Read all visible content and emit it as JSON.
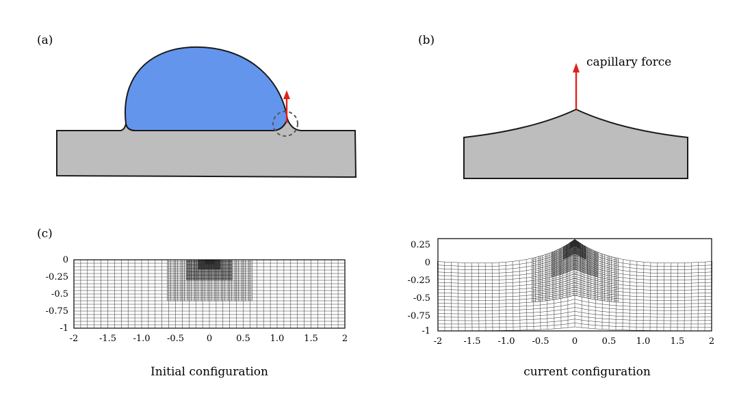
{
  "panels": {
    "a": {
      "label": "(a)"
    },
    "b": {
      "label": "(b)",
      "force_label": "capillary force"
    },
    "c": {
      "label": "(c)"
    }
  },
  "colors": {
    "droplet": "#6495ED",
    "substrate": "#BDBDBD",
    "outline": "#1a1a1a",
    "force_arrow": "#E0211B",
    "detail_circle": "#555555",
    "mesh_line": "#2b2b2b"
  },
  "meshes": {
    "initial": {
      "caption": "Initial configuration",
      "x_ticks": [
        "-2",
        "-1.5",
        "-1.0",
        "-0.5",
        "0",
        "0.5",
        "1.0",
        "1.5",
        "2"
      ],
      "y_ticks": [
        "0",
        "-0.25",
        "-0.5",
        "-0.75",
        "-1"
      ]
    },
    "current": {
      "caption": "current configuration",
      "x_ticks": [
        "-2",
        "-1.5",
        "-1.0",
        "-0.5",
        "0",
        "0.5",
        "1.0",
        "1.5",
        "2"
      ],
      "y_ticks": [
        "0.25",
        "0",
        "-0.25",
        "-0.5",
        "-0.75",
        "-1"
      ]
    }
  }
}
